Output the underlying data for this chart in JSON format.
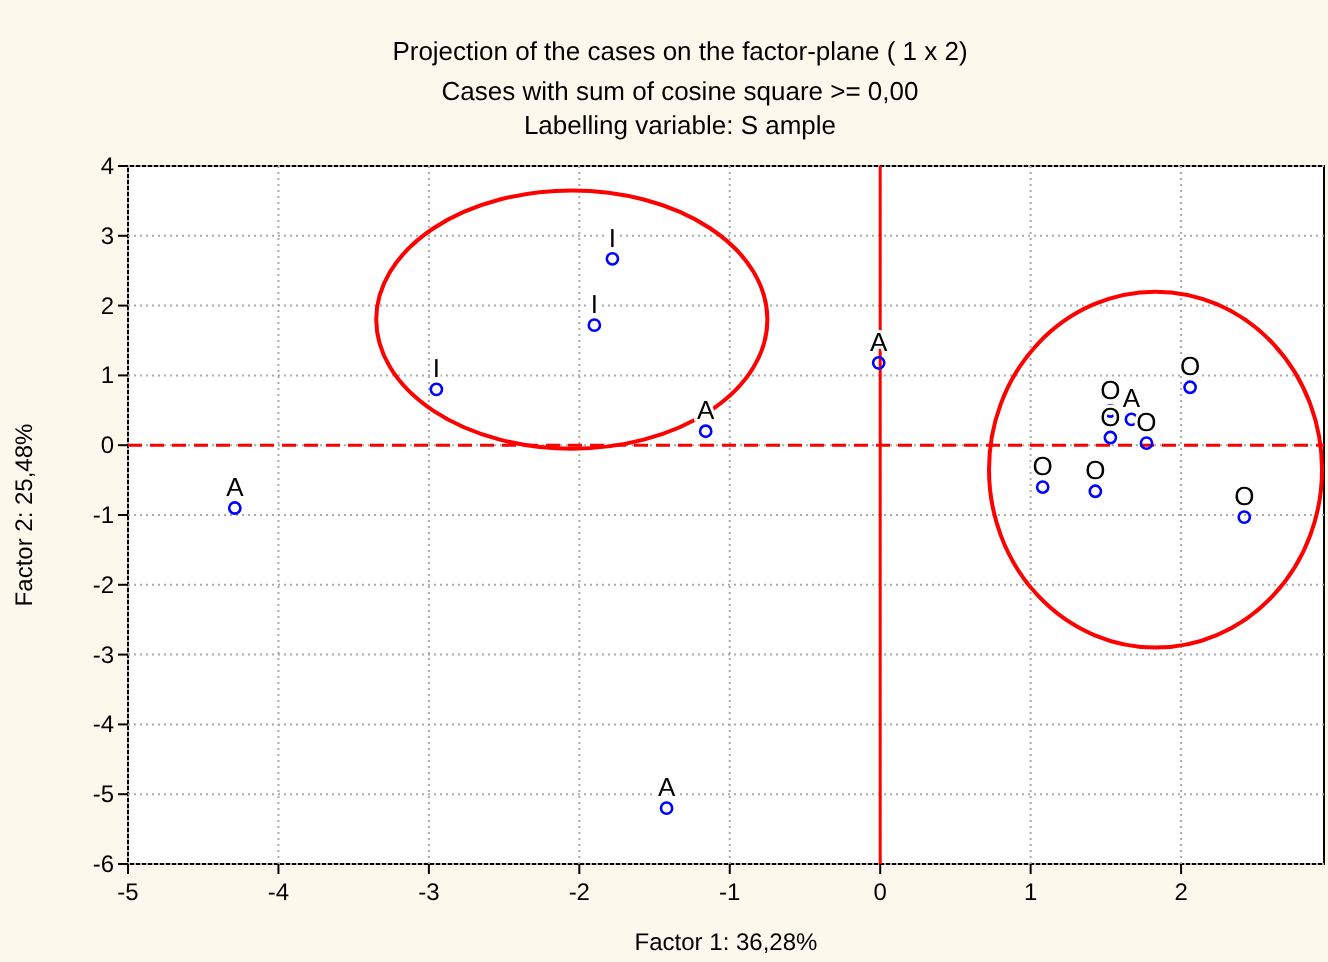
{
  "chart_data": {
    "type": "scatter",
    "title": "Projection of the cases on the factor-plane (  1 x   2)",
    "subtitle": "Cases with sum of cosine square >=  0,00\nLabelling variable: S ample",
    "xlabel": "Factor 1: 36,28%",
    "ylabel": "Factor 2: 25,48%",
    "x": [
      -4.29,
      -2.95,
      -1.9,
      -1.78,
      -1.16,
      -0.01,
      -1.42,
      1.08,
      1.43,
      1.53,
      1.53,
      1.67,
      1.77,
      2.06,
      2.42
    ],
    "values": [
      -0.9,
      0.8,
      1.72,
      2.67,
      0.2,
      1.18,
      -5.2,
      -0.6,
      -0.66,
      0.11,
      0.49,
      0.37,
      0.03,
      0.83,
      -1.03
    ],
    "value_labels": [
      "A",
      "I",
      "I",
      "I",
      "A",
      "A",
      "A",
      "O",
      "O",
      "O",
      "O",
      "A",
      "O",
      "O",
      "O"
    ],
    "color": "#0000ff",
    "marker": "circle",
    "xlim": [
      -5,
      2.95
    ],
    "xticks": [
      -5,
      -4,
      -3,
      -2,
      -1,
      0,
      1,
      2
    ],
    "ylim": [
      -6,
      4
    ],
    "yticks": [
      -6,
      -5,
      -4,
      -3,
      -2,
      -1,
      0,
      1,
      2,
      3,
      4
    ],
    "grid": true,
    "ref_lines": [
      {
        "axis": "x",
        "value": 0,
        "color": "#ff0000",
        "line_style": "solid"
      },
      {
        "axis": "y",
        "value": 0,
        "color": "#ff0000",
        "line_style": "dashed"
      }
    ]
  }
}
